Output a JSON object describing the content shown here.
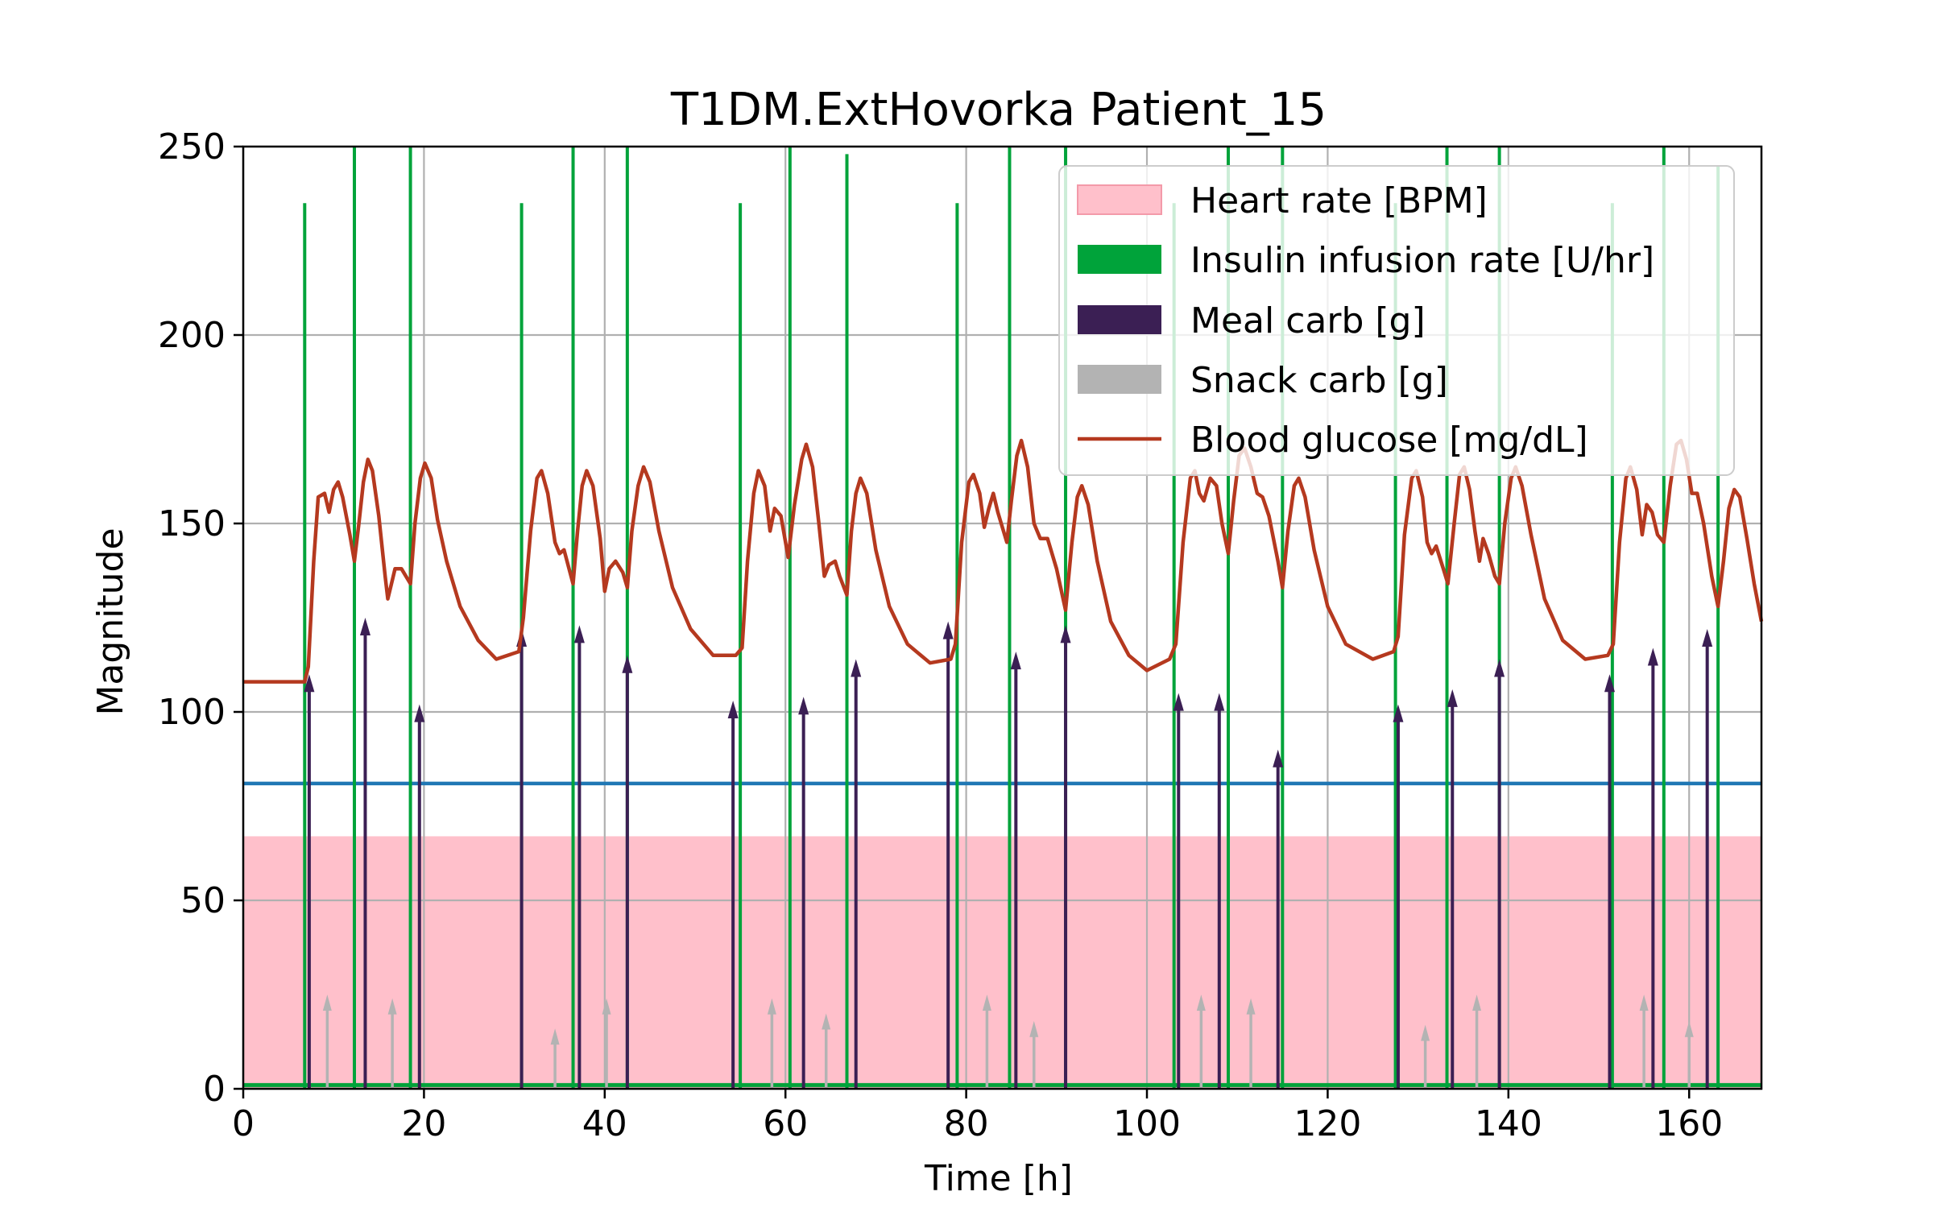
{
  "chart_data": {
    "type": "line",
    "title": "T1DM.ExtHovorka Patient_15",
    "xlabel": "Time [h]",
    "ylabel": "Magnitude",
    "xlim": [
      0,
      168
    ],
    "ylim": [
      0,
      250
    ],
    "xticks": [
      0,
      20,
      40,
      60,
      80,
      100,
      120,
      140,
      160
    ],
    "yticks": [
      0,
      50,
      100,
      150,
      200,
      250
    ],
    "grid": true,
    "legend_position": "top-right",
    "legend": [
      {
        "label": "Heart rate [BPM]",
        "color": "#ffc0cb",
        "kind": "patch"
      },
      {
        "label": "Insulin infusion rate [U/hr]",
        "color": "#00a33a",
        "kind": "patch"
      },
      {
        "label": "Meal carb [g]",
        "color": "#3b1f54",
        "kind": "patch"
      },
      {
        "label": "Snack carb [g]",
        "color": "#b3b3b3",
        "kind": "patch"
      },
      {
        "label": "Blood glucose [mg/dL]",
        "color": "#b5391f",
        "kind": "line"
      }
    ],
    "heart_rate": {
      "value": 67,
      "color": "#ffc0cb"
    },
    "reference_line": {
      "value": 81,
      "color": "#1f77b4"
    },
    "insulin_basal": 1,
    "insulin_boluses": [
      {
        "t": 6.8,
        "v": 235
      },
      {
        "t": 12.3,
        "v": 250
      },
      {
        "t": 18.5,
        "v": 250
      },
      {
        "t": 30.8,
        "v": 235
      },
      {
        "t": 36.5,
        "v": 250
      },
      {
        "t": 42.5,
        "v": 250
      },
      {
        "t": 55.0,
        "v": 235
      },
      {
        "t": 60.5,
        "v": 250
      },
      {
        "t": 66.8,
        "v": 248
      },
      {
        "t": 79.0,
        "v": 235
      },
      {
        "t": 84.8,
        "v": 250
      },
      {
        "t": 91.0,
        "v": 250
      },
      {
        "t": 103.0,
        "v": 235
      },
      {
        "t": 109.0,
        "v": 250
      },
      {
        "t": 115.0,
        "v": 250
      },
      {
        "t": 127.5,
        "v": 235
      },
      {
        "t": 133.2,
        "v": 250
      },
      {
        "t": 139.0,
        "v": 250
      },
      {
        "t": 151.5,
        "v": 235
      },
      {
        "t": 157.2,
        "v": 250
      },
      {
        "t": 163.2,
        "v": 245
      }
    ],
    "meals": [
      {
        "t": 7.3,
        "v": 110
      },
      {
        "t": 13.5,
        "v": 125
      },
      {
        "t": 19.5,
        "v": 102
      },
      {
        "t": 30.8,
        "v": 122
      },
      {
        "t": 37.2,
        "v": 123
      },
      {
        "t": 42.5,
        "v": 115
      },
      {
        "t": 54.2,
        "v": 103
      },
      {
        "t": 62.0,
        "v": 104
      },
      {
        "t": 67.8,
        "v": 114
      },
      {
        "t": 78.0,
        "v": 124
      },
      {
        "t": 85.5,
        "v": 116
      },
      {
        "t": 91.0,
        "v": 123
      },
      {
        "t": 103.5,
        "v": 105
      },
      {
        "t": 108.0,
        "v": 105
      },
      {
        "t": 114.5,
        "v": 90
      },
      {
        "t": 127.8,
        "v": 102
      },
      {
        "t": 133.8,
        "v": 106
      },
      {
        "t": 139.0,
        "v": 114
      },
      {
        "t": 151.2,
        "v": 110
      },
      {
        "t": 156.0,
        "v": 117
      },
      {
        "t": 162.0,
        "v": 122
      }
    ],
    "snacks": [
      {
        "t": 9.3,
        "v": 25
      },
      {
        "t": 16.5,
        "v": 24
      },
      {
        "t": 34.5,
        "v": 16
      },
      {
        "t": 40.2,
        "v": 24
      },
      {
        "t": 58.5,
        "v": 24
      },
      {
        "t": 64.5,
        "v": 20
      },
      {
        "t": 82.3,
        "v": 25
      },
      {
        "t": 87.5,
        "v": 18
      },
      {
        "t": 106.0,
        "v": 25
      },
      {
        "t": 111.5,
        "v": 24
      },
      {
        "t": 130.8,
        "v": 17
      },
      {
        "t": 136.5,
        "v": 25
      },
      {
        "t": 155.0,
        "v": 25
      },
      {
        "t": 160.0,
        "v": 18
      }
    ],
    "glucose": [
      [
        0,
        108
      ],
      [
        6.8,
        108
      ],
      [
        7.2,
        112
      ],
      [
        7.8,
        140
      ],
      [
        8.3,
        157
      ],
      [
        9,
        158
      ],
      [
        9.5,
        153
      ],
      [
        10,
        159
      ],
      [
        10.5,
        161
      ],
      [
        11,
        157
      ],
      [
        11.8,
        147
      ],
      [
        12.3,
        140
      ],
      [
        12.8,
        150
      ],
      [
        13.3,
        161
      ],
      [
        13.8,
        167
      ],
      [
        14.3,
        164
      ],
      [
        15,
        152
      ],
      [
        15.7,
        136
      ],
      [
        16,
        130
      ],
      [
        16.3,
        133
      ],
      [
        16.8,
        138
      ],
      [
        17.5,
        138
      ],
      [
        18.5,
        134
      ],
      [
        19,
        150
      ],
      [
        19.6,
        162
      ],
      [
        20.1,
        166
      ],
      [
        20.8,
        162
      ],
      [
        21.5,
        151
      ],
      [
        22.5,
        140
      ],
      [
        24,
        128
      ],
      [
        26,
        119
      ],
      [
        28,
        114
      ],
      [
        30.5,
        116
      ],
      [
        31,
        125
      ],
      [
        31.8,
        148
      ],
      [
        32.5,
        162
      ],
      [
        33,
        164
      ],
      [
        33.7,
        158
      ],
      [
        34.5,
        145
      ],
      [
        35,
        142
      ],
      [
        35.5,
        143
      ],
      [
        36.5,
        134
      ],
      [
        37,
        148
      ],
      [
        37.5,
        160
      ],
      [
        38,
        164
      ],
      [
        38.7,
        160
      ],
      [
        39.5,
        146
      ],
      [
        40,
        132
      ],
      [
        40.5,
        138
      ],
      [
        41.2,
        140
      ],
      [
        42,
        137
      ],
      [
        42.5,
        133
      ],
      [
        43,
        148
      ],
      [
        43.7,
        160
      ],
      [
        44.3,
        165
      ],
      [
        45,
        161
      ],
      [
        46,
        148
      ],
      [
        47.5,
        133
      ],
      [
        49.5,
        122
      ],
      [
        52,
        115
      ],
      [
        54.5,
        115
      ],
      [
        55.2,
        117
      ],
      [
        55.8,
        140
      ],
      [
        56.5,
        158
      ],
      [
        57,
        164
      ],
      [
        57.7,
        160
      ],
      [
        58.3,
        148
      ],
      [
        58.8,
        154
      ],
      [
        59.5,
        152
      ],
      [
        60.3,
        141
      ],
      [
        61,
        155
      ],
      [
        61.8,
        167
      ],
      [
        62.3,
        171
      ],
      [
        63,
        165
      ],
      [
        63.7,
        150
      ],
      [
        64.3,
        136
      ],
      [
        64.8,
        139
      ],
      [
        65.5,
        140
      ],
      [
        66,
        136
      ],
      [
        66.8,
        131
      ],
      [
        67.3,
        148
      ],
      [
        67.8,
        158
      ],
      [
        68.3,
        162
      ],
      [
        69,
        158
      ],
      [
        70,
        143
      ],
      [
        71.5,
        128
      ],
      [
        73.5,
        118
      ],
      [
        76,
        113
      ],
      [
        78.3,
        114
      ],
      [
        78.8,
        118
      ],
      [
        79.5,
        145
      ],
      [
        80.3,
        161
      ],
      [
        80.8,
        163
      ],
      [
        81.5,
        158
      ],
      [
        82,
        149
      ],
      [
        82.5,
        154
      ],
      [
        83,
        158
      ],
      [
        83.5,
        153
      ],
      [
        84.5,
        145
      ],
      [
        85,
        156
      ],
      [
        85.6,
        168
      ],
      [
        86.1,
        172
      ],
      [
        86.8,
        165
      ],
      [
        87.5,
        150
      ],
      [
        88.2,
        146
      ],
      [
        89,
        146
      ],
      [
        90,
        138
      ],
      [
        91,
        127
      ],
      [
        91.7,
        145
      ],
      [
        92.3,
        157
      ],
      [
        92.8,
        160
      ],
      [
        93.5,
        155
      ],
      [
        94.5,
        140
      ],
      [
        96,
        124
      ],
      [
        98,
        115
      ],
      [
        100,
        111
      ],
      [
        102.5,
        114
      ],
      [
        103.2,
        118
      ],
      [
        104,
        145
      ],
      [
        104.8,
        162
      ],
      [
        105.3,
        164
      ],
      [
        105.8,
        158
      ],
      [
        106.3,
        156
      ],
      [
        107,
        162
      ],
      [
        107.7,
        160
      ],
      [
        108.3,
        150
      ],
      [
        109,
        142
      ],
      [
        109.6,
        156
      ],
      [
        110.2,
        168
      ],
      [
        110.8,
        170
      ],
      [
        111.5,
        165
      ],
      [
        112.2,
        158
      ],
      [
        112.8,
        157
      ],
      [
        113.5,
        152
      ],
      [
        114.5,
        140
      ],
      [
        115,
        133
      ],
      [
        115.6,
        148
      ],
      [
        116.3,
        160
      ],
      [
        116.8,
        162
      ],
      [
        117.5,
        157
      ],
      [
        118.5,
        143
      ],
      [
        120,
        128
      ],
      [
        122,
        118
      ],
      [
        125,
        114
      ],
      [
        127.3,
        116
      ],
      [
        127.8,
        120
      ],
      [
        128.5,
        147
      ],
      [
        129.3,
        162
      ],
      [
        129.8,
        164
      ],
      [
        130.5,
        157
      ],
      [
        131,
        145
      ],
      [
        131.5,
        142
      ],
      [
        132,
        144
      ],
      [
        132.8,
        138
      ],
      [
        133.3,
        134
      ],
      [
        134,
        150
      ],
      [
        134.6,
        163
      ],
      [
        135.1,
        165
      ],
      [
        135.7,
        159
      ],
      [
        136.3,
        148
      ],
      [
        136.8,
        140
      ],
      [
        137.2,
        146
      ],
      [
        137.8,
        142
      ],
      [
        138.5,
        136
      ],
      [
        139,
        134
      ],
      [
        139.6,
        150
      ],
      [
        140.3,
        162
      ],
      [
        140.8,
        165
      ],
      [
        141.5,
        160
      ],
      [
        142.5,
        147
      ],
      [
        144,
        130
      ],
      [
        146,
        119
      ],
      [
        148.5,
        114
      ],
      [
        151,
        115
      ],
      [
        151.6,
        118
      ],
      [
        152.3,
        145
      ],
      [
        153,
        162
      ],
      [
        153.5,
        165
      ],
      [
        154.2,
        159
      ],
      [
        154.8,
        147
      ],
      [
        155.3,
        155
      ],
      [
        155.9,
        153
      ],
      [
        156.5,
        147
      ],
      [
        157.2,
        145
      ],
      [
        157.9,
        160
      ],
      [
        158.6,
        171
      ],
      [
        159.1,
        172
      ],
      [
        159.7,
        167
      ],
      [
        160.3,
        158
      ],
      [
        160.9,
        158
      ],
      [
        161.6,
        150
      ],
      [
        162.5,
        136
      ],
      [
        163.2,
        128
      ],
      [
        163.8,
        140
      ],
      [
        164.4,
        154
      ],
      [
        165,
        159
      ],
      [
        165.6,
        157
      ],
      [
        166.4,
        146
      ],
      [
        167.2,
        134
      ],
      [
        168,
        124
      ]
    ]
  }
}
